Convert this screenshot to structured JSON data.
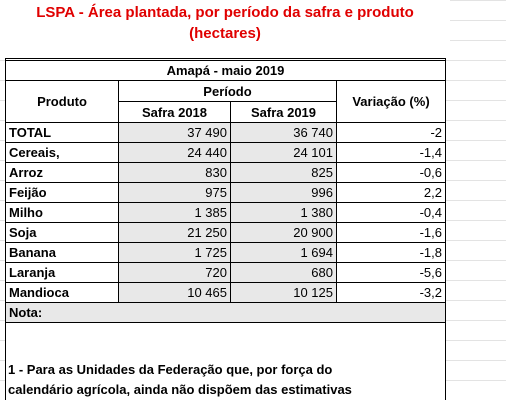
{
  "title": {
    "line1": "LSPA - Área plantada, por período da safra e produto",
    "line2": "(hectares)"
  },
  "table": {
    "caption": "Amapá - maio 2019",
    "headers": {
      "product": "Produto",
      "period": "Período",
      "harvest_2018": "Safra 2018",
      "harvest_2019": "Safra 2019",
      "change": "Variação (%)"
    },
    "rows": [
      [
        "TOTAL",
        "37 490",
        "36 740",
        "-2"
      ],
      [
        "Cereais,",
        "24 440",
        "24 101",
        "-1,4"
      ],
      [
        "Arroz",
        "830",
        "825",
        "-0,6"
      ],
      [
        "Feijão",
        "975",
        "996",
        "2,2"
      ],
      [
        "Milho",
        "1 385",
        "1 380",
        "-0,4"
      ],
      [
        "Soja",
        "21 250",
        "20 900",
        "-1,6"
      ],
      [
        "Banana",
        "1 725",
        "1 694",
        "-1,8"
      ],
      [
        "Laranja",
        "720",
        "680",
        "-5,6"
      ],
      [
        "Mandioca",
        "10 465",
        "10 125",
        "-3,2"
      ]
    ],
    "note": "Nota:"
  },
  "footnote": {
    "line1": "1 - Para as Unidades da Federação que, por força do",
    "line2": "calendário agrícola, ainda não dispõem das estimativas"
  }
}
